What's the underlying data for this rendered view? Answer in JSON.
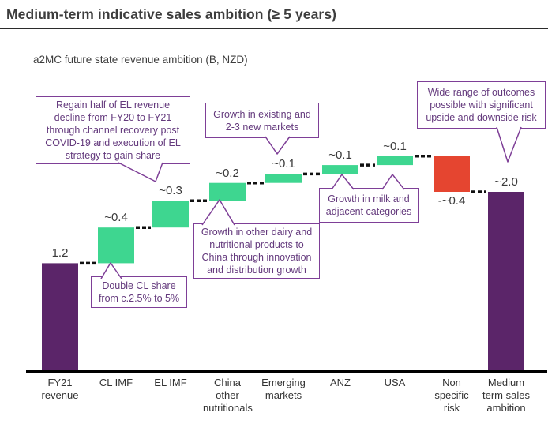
{
  "header": {
    "title": "Medium-term indicative sales ambition (≥ 5 years)"
  },
  "subtitle": "a2MC future state revenue ambition (B, NZD)",
  "chart_data": {
    "type": "bar",
    "subtype": "waterfall",
    "title": "a2MC future state revenue ambition (B, NZD)",
    "unit": "B NZD",
    "categories": [
      "FY21 revenue",
      "CL IMF",
      "EL IMF",
      "China other nutritionals",
      "Emerging markets",
      "ANZ",
      "USA",
      "Non specific risk",
      "Medium term sales ambition"
    ],
    "values": [
      1.2,
      0.4,
      0.3,
      0.2,
      0.1,
      0.1,
      0.1,
      -0.4,
      2.0
    ],
    "labels": [
      "1.2",
      "~0.4",
      "~0.3",
      "~0.2",
      "~0.1",
      "~0.1",
      "~0.1",
      "-~0.4",
      "~2.0"
    ],
    "bar_types": [
      "total",
      "increase",
      "increase",
      "increase",
      "increase",
      "increase",
      "increase",
      "decrease",
      "total"
    ],
    "ylim": [
      0,
      2.6
    ],
    "grid": false,
    "legend": "none",
    "connector_style": "dashed",
    "colors": {
      "total": "#5b2569",
      "increase": "#3ed690",
      "decrease": "#e54530"
    }
  },
  "callouts": [
    {
      "target": "EL IMF",
      "text": "Regain half of EL revenue\ndecline from FY20 to FY21\nthrough channel recovery post\nCOVID-19 and execution of EL\nstrategy to gain share"
    },
    {
      "target": "Emerging markets",
      "text": "Growth in existing and\n2-3 new markets"
    },
    {
      "target": "Medium term sales ambition",
      "text": "Wide range of outcomes\npossible with significant\nupside and downside risk"
    },
    {
      "target": "CL IMF",
      "text": "Double CL share\nfrom c.2.5% to 5%"
    },
    {
      "target": "China other nutritionals",
      "text": "Growth in other dairy and\nnutritional products to\nChina through innovation\nand distribution growth"
    },
    {
      "target": "ANZ and USA",
      "text": "Growth in milk and\nadjacent categories"
    }
  ]
}
